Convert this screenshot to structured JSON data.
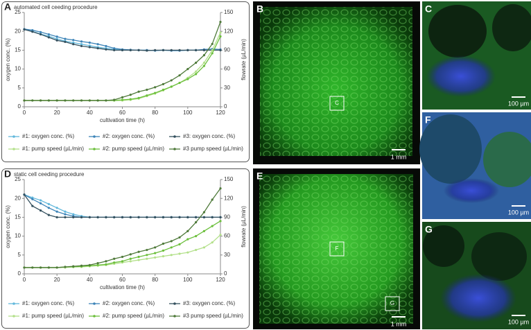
{
  "chart_data": [
    {
      "type": "line",
      "panel_label": "A",
      "title": "automated cell ceeding procedure",
      "x_label": "cultivation time (h)",
      "y_label": "oxygen conc. (%)",
      "y2_label": "flowrate (µL/min)",
      "x": [
        0,
        5,
        10,
        15,
        20,
        25,
        30,
        35,
        40,
        45,
        50,
        55,
        60,
        65,
        70,
        75,
        80,
        85,
        90,
        95,
        100,
        105,
        110,
        115,
        120
      ],
      "xlim": [
        0,
        120
      ],
      "xticks": [
        0,
        20,
        40,
        60,
        80,
        100,
        120
      ],
      "ylim": [
        0,
        25
      ],
      "yticks": [
        0,
        5,
        10,
        15,
        20,
        25
      ],
      "y2lim": [
        0,
        150
      ],
      "y2ticks": [
        0,
        30,
        60,
        90,
        120,
        150
      ],
      "series": [
        {
          "name": "#1: oxygen conc. (%)",
          "color": "#62b8dc",
          "values": [
            20.5,
            20,
            19.3,
            18.7,
            18,
            17.4,
            17,
            16.6,
            16.2,
            15.8,
            15.5,
            15.2,
            15,
            15,
            15,
            15,
            14.9,
            15,
            14.9,
            14.9,
            15,
            15,
            15,
            15,
            15
          ]
        },
        {
          "name": "#2: oxygen conc. (%)",
          "color": "#3d84b8",
          "values": [
            20.6,
            20.3,
            19.8,
            19.2,
            18.6,
            18,
            17.7,
            17.3,
            17,
            16.6,
            16.1,
            15.5,
            15.2,
            15.1,
            15,
            15,
            14.9,
            15,
            14.9,
            14.9,
            15,
            15,
            15.2,
            15.3,
            15.2
          ]
        },
        {
          "name": "#3: oxygen conc. (%)",
          "color": "#34505e",
          "values": [
            20.5,
            19.9,
            19.2,
            18.4,
            17.6,
            17.2,
            16.6,
            16.1,
            15.8,
            15.5,
            15.2,
            15,
            15,
            15,
            15,
            14.9,
            15,
            15,
            15,
            15,
            15,
            15,
            15,
            15,
            15
          ]
        },
        {
          "name": "#1: pump speed (µL/min)",
          "color": "#b3e08a",
          "axis": "y2",
          "values": [
            10,
            10,
            10,
            10,
            10,
            10,
            10,
            10,
            10,
            10,
            10,
            10,
            10,
            11,
            13,
            17,
            21,
            26,
            32,
            38,
            46,
            56,
            70,
            90,
            118
          ]
        },
        {
          "name": "#2: pump speed (µL/min)",
          "color": "#6cbf3c",
          "axis": "y2",
          "values": [
            10,
            10,
            10,
            10,
            10,
            10,
            10,
            10,
            10,
            10,
            10,
            10,
            11,
            12,
            14,
            18,
            22,
            27,
            32,
            38,
            44,
            52,
            65,
            85,
            112
          ]
        },
        {
          "name": "#3 pump speed (µL/min)",
          "color": "#4f7a3a",
          "axis": "y2",
          "values": [
            10,
            10,
            10,
            10,
            10,
            10,
            10,
            10,
            10,
            10,
            10,
            11,
            15,
            19,
            24,
            27,
            31,
            36,
            42,
            50,
            60,
            70,
            82,
            100,
            135
          ]
        }
      ]
    },
    {
      "type": "line",
      "panel_label": "D",
      "title": "static cell ceeding procedure",
      "x_label": "cultivation time (h)",
      "y_label": "oxygen conc. (%)",
      "y2_label": "flowrate (µL/min)",
      "x": [
        0,
        5,
        10,
        15,
        20,
        25,
        30,
        35,
        40,
        45,
        50,
        55,
        60,
        65,
        70,
        75,
        80,
        85,
        90,
        95,
        100,
        105,
        110,
        115,
        120
      ],
      "xlim": [
        0,
        120
      ],
      "xticks": [
        0,
        20,
        40,
        60,
        80,
        100,
        120
      ],
      "ylim": [
        0,
        25
      ],
      "yticks": [
        0,
        5,
        10,
        15,
        20,
        25
      ],
      "y2lim": [
        0,
        150
      ],
      "y2ticks": [
        0,
        30,
        60,
        90,
        120,
        150
      ],
      "series": [
        {
          "name": "#1: oxygen conc. (%)",
          "color": "#62b8dc",
          "values": [
            21,
            20.2,
            19.5,
            18.5,
            17.5,
            16.5,
            15.8,
            15.3,
            15,
            15,
            15,
            15,
            15,
            15,
            15,
            15,
            15,
            15,
            15,
            15,
            15,
            15,
            15,
            15,
            15
          ]
        },
        {
          "name": "#2: oxygen conc. (%)",
          "color": "#3d84b8",
          "values": [
            21,
            19.8,
            18.7,
            17.5,
            16.5,
            15.8,
            15.3,
            15,
            15,
            15,
            15,
            15,
            15,
            15,
            15,
            15,
            15,
            15,
            15,
            15,
            15,
            15,
            15,
            15,
            15
          ]
        },
        {
          "name": "#3: oxygen conc. (%)",
          "color": "#34505e",
          "values": [
            21,
            18,
            16.8,
            15.6,
            15,
            15,
            15,
            15,
            15,
            15,
            15,
            15,
            15,
            15,
            15,
            15,
            15,
            15,
            15,
            15,
            15,
            15,
            15,
            15,
            15
          ]
        },
        {
          "name": "#1: pump speed (µL/min)",
          "color": "#b3e08a",
          "axis": "y2",
          "values": [
            10,
            10,
            10,
            10,
            10,
            10,
            11,
            11,
            12,
            13,
            14,
            16,
            18,
            20,
            22,
            24,
            26,
            28,
            30,
            32,
            34,
            38,
            42,
            50,
            62
          ]
        },
        {
          "name": "#2: pump speed (µL/min)",
          "color": "#6cbf3c",
          "axis": "y2",
          "values": [
            10,
            10,
            10,
            10,
            10,
            11,
            11,
            12,
            13,
            14,
            15,
            18,
            20,
            24,
            27,
            30,
            33,
            37,
            42,
            47,
            55,
            60,
            68,
            76,
            84
          ]
        },
        {
          "name": "#3 pump speed (µL/min)",
          "color": "#4f7a3a",
          "axis": "y2",
          "values": [
            10,
            10,
            10,
            10,
            10,
            11,
            12,
            13,
            14,
            17,
            20,
            24,
            27,
            31,
            35,
            38,
            42,
            48,
            52,
            58,
            68,
            82,
            98,
            118,
            136
          ]
        }
      ]
    }
  ],
  "images": [
    {
      "label": "B",
      "scale": "1 mm",
      "boxes": [
        "C"
      ]
    },
    {
      "label": "E",
      "scale": "1 mm",
      "boxes": [
        "F",
        "G"
      ]
    },
    {
      "label": "C",
      "scale": "100 µm"
    },
    {
      "label": "F",
      "scale": "100 µm"
    },
    {
      "label": "G",
      "scale": "100 µm"
    }
  ]
}
